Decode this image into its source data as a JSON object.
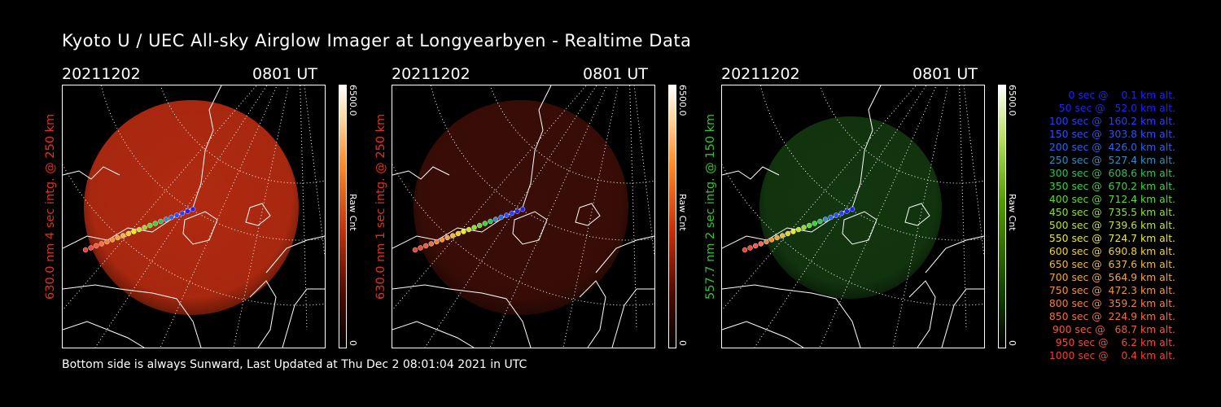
{
  "title": "Kyoto U / UEC All-sky Airglow Imager at Longyearbyen - Realtime Data",
  "footer": "Bottom side is always Sunward, Last Updated at Thu Dec  2 08:01:04 2021 in UTC",
  "panels": [
    {
      "date": "20211202",
      "time": "0801 UT",
      "ylabel": "630.0 nm 4 sec intg. @ 250 km",
      "ylabel_color": "#e0321e",
      "cb_max": "6500.0",
      "cb_min": "0",
      "cb_unit": "Raw Cnt",
      "disk_color": "#b02a10",
      "disk_level": 0.55,
      "cb_theme": "red"
    },
    {
      "date": "20211202",
      "time": "0801 UT",
      "ylabel": "630.0 nm 1 sec intg. @ 250 km",
      "ylabel_color": "#e0321e",
      "cb_max": "6500.0",
      "cb_min": "0",
      "cb_unit": "Raw Cnt",
      "disk_color": "#3a0d07",
      "disk_level": 0.15,
      "cb_theme": "red"
    },
    {
      "date": "20211202",
      "time": "0801 UT",
      "ylabel": "557.7 nm 2 sec intg. @ 150 km",
      "ylabel_color": "#35c32f",
      "cb_max": "6500.0",
      "cb_min": "0",
      "cb_unit": "Raw Cnt",
      "disk_color": "#12360f",
      "disk_level": 0.18,
      "cb_theme": "green"
    }
  ],
  "legend": [
    {
      "text": "0 sec @    0.1 km alt.",
      "color": "#2020ff"
    },
    {
      "text": "50 sec @   52.0 km alt.",
      "color": "#2020ff"
    },
    {
      "text": "100 sec @  160.2 km alt.",
      "color": "#2b3cff"
    },
    {
      "text": "150 sec @  303.8 km alt.",
      "color": "#2b4fff"
    },
    {
      "text": "200 sec @  426.0 km alt.",
      "color": "#2f63ee"
    },
    {
      "text": "250 sec @  527.4 km alt.",
      "color": "#2f8fbf"
    },
    {
      "text": "300 sec @  608.6 km alt.",
      "color": "#2fbf5f"
    },
    {
      "text": "350 sec @  670.2 km alt.",
      "color": "#3fd03f"
    },
    {
      "text": "400 sec @  712.4 km alt.",
      "color": "#5fd82f"
    },
    {
      "text": "450 sec @  735.5 km alt.",
      "color": "#8fdf2f"
    },
    {
      "text": "500 sec @  739.6 km alt.",
      "color": "#bfe32f"
    },
    {
      "text": "550 sec @  724.7 km alt.",
      "color": "#e8e830"
    },
    {
      "text": "600 sec @  690.8 km alt.",
      "color": "#f0d030"
    },
    {
      "text": "650 sec @  637.6 km alt.",
      "color": "#f0b83a"
    },
    {
      "text": "700 sec @  564.9 km alt.",
      "color": "#f0a640"
    },
    {
      "text": "750 sec @  472.3 km alt.",
      "color": "#f09240"
    },
    {
      "text": "800 sec @  359.2 km alt.",
      "color": "#f08040"
    },
    {
      "text": "850 sec @  224.9 km alt.",
      "color": "#f07040"
    },
    {
      "text": "900 sec @   68.7 km alt.",
      "color": "#f05a40"
    },
    {
      "text": "950 sec @    6.2 km alt.",
      "color": "#f04a3a"
    },
    {
      "text": "1000 sec @    0.4 km alt.",
      "color": "#f04030"
    }
  ],
  "icons": {
    "coastline": "coastline-map",
    "track": "trajectory-dots",
    "grid": "lat-lon-grid"
  }
}
